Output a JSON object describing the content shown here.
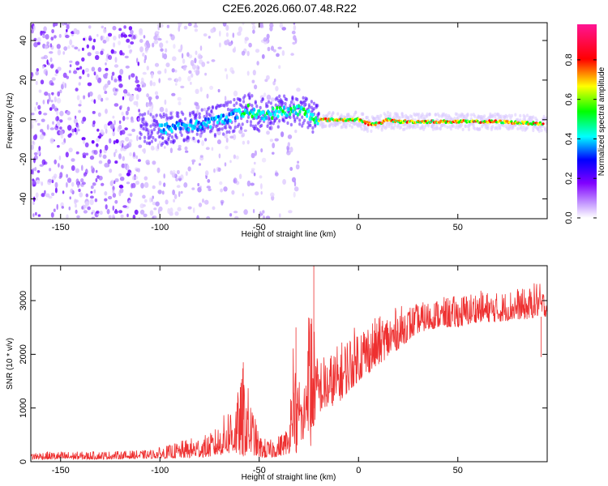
{
  "title": "C2E6.2026.060.07.48.R22",
  "chart_data": [
    {
      "type": "heatmap",
      "name": "spectrogram",
      "xlabel": "Height of straight line (km)",
      "ylabel": "Frequency (Hz)",
      "xlim": [
        -165,
        95
      ],
      "ylim": [
        -50,
        49
      ],
      "xticks": [
        -150,
        -100,
        -50,
        0,
        50
      ],
      "yticks": [
        -40,
        -20,
        0,
        20,
        40
      ],
      "colorbar": {
        "label": "Normalized spectral amplitude",
        "ticks": [
          0.0,
          0.2,
          0.4,
          0.6,
          0.8
        ],
        "range": [
          0,
          0.98
        ],
        "colormap": [
          "#f0f0ff",
          "#9b30ff",
          "#0000ff",
          "#00ffff",
          "#00ff00",
          "#ffff00",
          "#ff0000",
          "#ff1493"
        ]
      },
      "ridge": {
        "x": [
          -100,
          -90,
          -80,
          -70,
          -60,
          -55,
          -50,
          -40,
          -30,
          -20,
          -10,
          0,
          5,
          10,
          15,
          20,
          30,
          50,
          70,
          92
        ],
        "freq": [
          -5,
          -3,
          -3,
          0,
          3,
          5,
          2,
          4,
          5,
          0,
          0,
          0,
          -2,
          -2,
          0,
          -1,
          -1,
          -1,
          -1,
          -2
        ]
      }
    },
    {
      "type": "line",
      "name": "snr",
      "xlabel": "Height of straight line (km)",
      "ylabel": "SNR (10 * v/v)",
      "xlim": [
        -165,
        95
      ],
      "ylim": [
        0,
        3650
      ],
      "xticks": [
        -150,
        -100,
        -50,
        0,
        50
      ],
      "yticks": [
        0,
        1000,
        2000,
        3000
      ],
      "color": "#ee3030",
      "envelope": {
        "x": [
          -165,
          -140,
          -120,
          -105,
          -95,
          -85,
          -75,
          -70,
          -65,
          -60,
          -58,
          -55,
          -50,
          -45,
          -40,
          -35,
          -33,
          -31,
          -30,
          -28,
          -26,
          -24,
          -23,
          -21,
          -15,
          -10,
          -5,
          0,
          10,
          20,
          30,
          40,
          50,
          60,
          70,
          80,
          85,
          90,
          95
        ],
        "low": [
          40,
          40,
          50,
          60,
          60,
          70,
          90,
          120,
          150,
          120,
          100,
          150,
          80,
          60,
          100,
          150,
          500,
          100,
          600,
          200,
          800,
          100,
          600,
          900,
          1000,
          1100,
          1300,
          1500,
          1800,
          2100,
          2400,
          2500,
          2500,
          2600,
          2600,
          2650,
          2650,
          2700,
          2700
        ],
        "high": [
          190,
          190,
          200,
          220,
          320,
          440,
          520,
          700,
          1100,
          1350,
          1850,
          1300,
          500,
          400,
          500,
          700,
          2500,
          1300,
          1800,
          1200,
          2400,
          3650,
          2800,
          2000,
          2000,
          2200,
          2400,
          2600,
          2700,
          2900,
          2950,
          3050,
          3100,
          3200,
          3150,
          3250,
          3200,
          3400,
          3100
        ]
      },
      "spikes": [
        {
          "x": -58,
          "y": 1850
        },
        {
          "x": -31.5,
          "y": 2500
        },
        {
          "x": -22.5,
          "y": 3650
        },
        {
          "x": 92,
          "y": 1950
        }
      ]
    }
  ]
}
